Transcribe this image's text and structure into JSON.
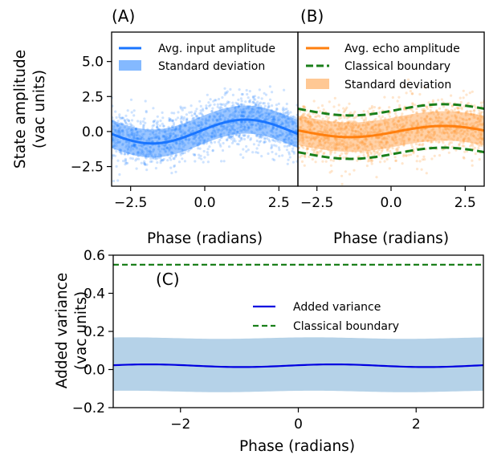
{
  "colors": {
    "input_line": "#1a75ff",
    "input_points": "#1f7fff",
    "input_band": "#1f7fff",
    "echo_line": "#ff7f0e",
    "echo_points": "#ff8c1a",
    "echo_band": "#ff9a3c",
    "boundary": "#1a7f1a",
    "added_line": "#0000e0",
    "added_band": "#b5d2e8"
  },
  "chart_data": [
    {
      "id": "A",
      "type": "scatter",
      "panel_label": "(A)",
      "xlabel": "Phase (radians)",
      "ylabel_lines": [
        "State amplitude",
        "(vac units)"
      ],
      "xlim": [
        -3.14159,
        3.14159
      ],
      "ylim": [
        -3.9,
        7.1
      ],
      "xticks": [
        -2.5,
        0.0,
        2.5
      ],
      "xtick_labels": [
        "−2.5",
        "0.0",
        "2.5"
      ],
      "yticks": [
        -2.5,
        0.0,
        2.5,
        5.0
      ],
      "ytick_labels": [
        "−2.5",
        "0.0",
        "2.5",
        "5.0"
      ],
      "series": [
        {
          "name": "Avg. input amplitude",
          "kind": "mean-line",
          "model": "a*sin(x - phi)",
          "a": 0.85,
          "phi": -0.2
        },
        {
          "name": "Standard deviation",
          "kind": "band",
          "half_width": 1.0
        }
      ],
      "scatter": {
        "kind": "samples around mean",
        "spread": 1.0
      },
      "legend": {
        "location": "upper-left",
        "entries": [
          "Avg. input amplitude",
          "Standard deviation"
        ]
      }
    },
    {
      "id": "B",
      "type": "scatter",
      "panel_label": "(B)",
      "xlabel": "Phase (radians)",
      "xlim": [
        -3.14159,
        3.14159
      ],
      "ylim": [
        -3.9,
        7.1
      ],
      "xticks": [
        -2.5,
        0.0,
        2.5
      ],
      "xtick_labels": [
        "−2.5",
        "0.0",
        "2.5"
      ],
      "series": [
        {
          "name": "Avg. echo amplitude",
          "kind": "mean-line",
          "model": "a*sin(x - phi)",
          "a": 0.4,
          "phi": 0.2
        },
        {
          "name": "Classical boundary",
          "kind": "dashed-pair",
          "offset": 1.55
        },
        {
          "name": "Standard deviation",
          "kind": "band",
          "half_width": 1.05
        }
      ],
      "scatter": {
        "kind": "samples around mean",
        "spread": 1.05
      },
      "legend": {
        "location": "upper-left",
        "entries": [
          "Avg. echo amplitude",
          "Classical boundary",
          "Standard deviation"
        ]
      }
    },
    {
      "id": "C",
      "type": "line",
      "panel_label": "(C)",
      "xlabel": "Phase (radians)",
      "ylabel_lines": [
        "Added variance",
        "(vac units)"
      ],
      "xlim": [
        -3.14159,
        3.14159
      ],
      "ylim": [
        -0.2,
        0.6
      ],
      "xticks": [
        -2,
        0,
        2
      ],
      "xtick_labels": [
        "−2",
        "0",
        "2"
      ],
      "yticks": [
        -0.2,
        0.0,
        0.2,
        0.4,
        0.6
      ],
      "ytick_labels": [
        "−0.2",
        "0.0",
        "0.2",
        "0.4",
        "0.6"
      ],
      "series": [
        {
          "name": "Added variance",
          "kind": "line",
          "model": "c + a*cos(2x - phi)",
          "c": 0.02,
          "a": 0.007,
          "phi": 1.2
        },
        {
          "name": "Classical boundary",
          "kind": "hline",
          "value": 0.55
        },
        {
          "name": "band",
          "kind": "band",
          "upper": 0.165,
          "lower": -0.115
        }
      ],
      "legend": {
        "location": "center-right",
        "entries": [
          "Added variance",
          "Classical boundary"
        ]
      }
    }
  ]
}
